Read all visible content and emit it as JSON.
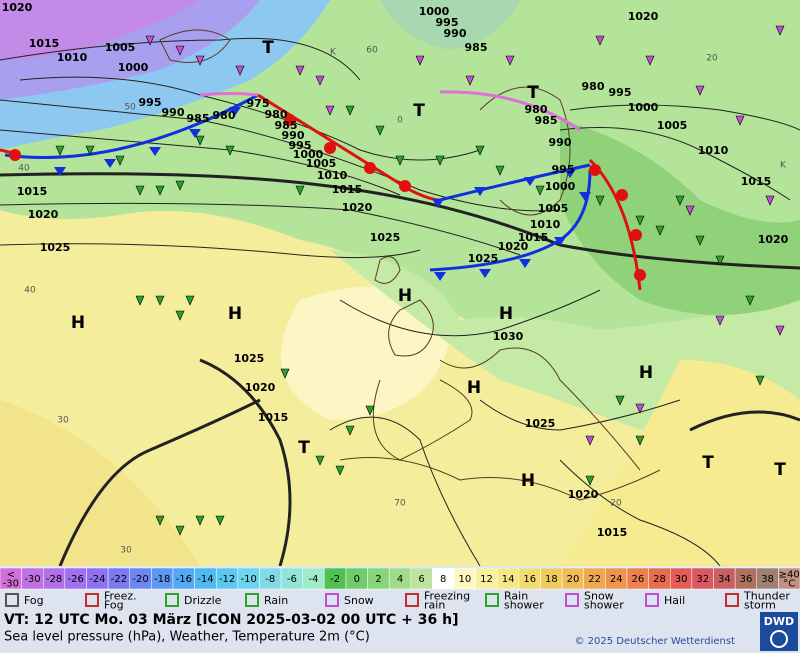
{
  "map": {
    "isobar_labels": [
      1020,
      1015,
      1010,
      1005,
      1000,
      995,
      990,
      985,
      980,
      975,
      980,
      985,
      990,
      995,
      1000,
      1005,
      1010,
      1015,
      1020,
      1025,
      1015,
      1020,
      1025,
      1000,
      995,
      990,
      985,
      1020,
      980,
      995,
      1000,
      1005,
      1010,
      1015,
      1020,
      980,
      985,
      990,
      995,
      1000,
      1005,
      1010,
      1015,
      1020,
      1025,
      1030,
      1025,
      1020,
      1015,
      1025,
      1020,
      1015
    ],
    "pressure_centers": [
      "T",
      "T",
      "T",
      "T",
      "T",
      "T",
      "H",
      "H",
      "H",
      "H",
      "H",
      "H",
      "H"
    ],
    "temperature_labels": [
      "50",
      "40",
      "30",
      "40",
      "30",
      "20",
      "20",
      "60",
      "70",
      "0",
      "K",
      "K"
    ]
  },
  "color_scale": {
    "low_label": "<\n-30",
    "values": [
      -30,
      -28,
      -26,
      -24,
      -22,
      -20,
      -18,
      -16,
      -14,
      -12,
      -10,
      -8,
      -6,
      -4,
      -2,
      0,
      2,
      4,
      6,
      8,
      10,
      12,
      14,
      16,
      18,
      20,
      22,
      24,
      26,
      28,
      30,
      32,
      34,
      36,
      38
    ],
    "high_label": "≥40\n°C",
    "colors": [
      "#d070d8",
      "#c070e0",
      "#b070e8",
      "#a070f0",
      "#9070f0",
      "#7c78f0",
      "#6c88f0",
      "#5c98f0",
      "#54a8f0",
      "#50b8f0",
      "#5cc8f0",
      "#6cd4ec",
      "#80dce4",
      "#90e4d8",
      "#a0ecc8",
      "#50c050",
      "#70cc68",
      "#88d478",
      "#a0dc88",
      "#bce4a0",
      "#ffffff",
      "#fcf8c0",
      "#f8f0a0",
      "#f4e888",
      "#f0dc70",
      "#f0cc60",
      "#f0bc58",
      "#f0a850",
      "#ee9450",
      "#ec8050",
      "#e86c50",
      "#e45c58",
      "#dc5860",
      "#c86060",
      "#b07060",
      "#a08070",
      "#c09080"
    ]
  },
  "weather_legend": [
    "Fog",
    "Freez.\nFog",
    "Drizzle",
    "Rain",
    "Snow",
    "Freezing\nrain",
    "Rain\nshower",
    "Snow\nshower",
    "Hail",
    "Thunder\nstorm"
  ],
  "footer": {
    "valid_time": "VT: 12 UTC Mo.  03 März [ICON 2025-03-02  00 UTC + 36 h]",
    "description": "Sea level pressure (hPa), Weather, Temperature 2m (°C)",
    "copyright": "© 2025 Deutscher Wetterdienst",
    "logo": "DWD"
  }
}
